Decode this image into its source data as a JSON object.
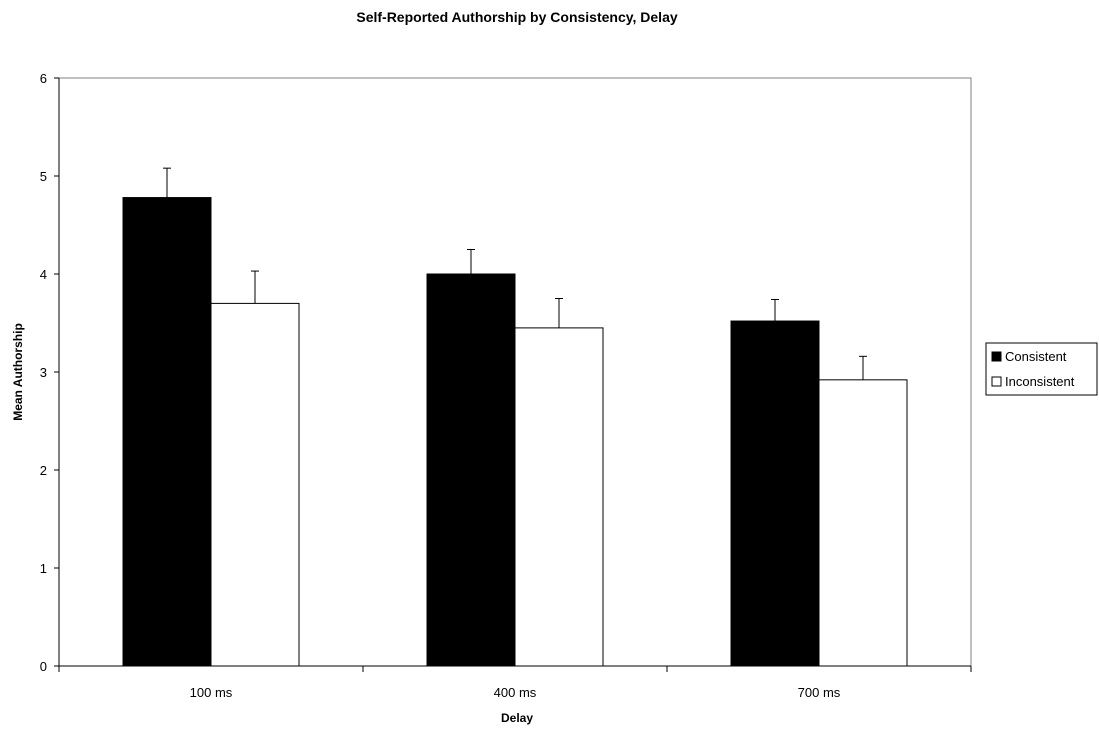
{
  "chart_data": {
    "type": "bar",
    "title": "Self-Reported Authorship by Consistency, Delay",
    "xlabel": "Delay",
    "ylabel": "Mean Authorship",
    "categories": [
      "100 ms",
      "400 ms",
      "700 ms"
    ],
    "ylim": [
      0,
      6
    ],
    "yticks": [
      "0",
      "1",
      "2",
      "3",
      "4",
      "5",
      "6"
    ],
    "grid": false,
    "legend": "right",
    "series": [
      {
        "name": "Consistent",
        "color": "#000000",
        "values": [
          4.78,
          4.0,
          3.52
        ],
        "errors": [
          0.3,
          0.25,
          0.22
        ]
      },
      {
        "name": "Inconsistent",
        "color": "#ffffff",
        "values": [
          3.7,
          3.45,
          2.92
        ],
        "errors": [
          0.33,
          0.3,
          0.24
        ]
      }
    ]
  }
}
